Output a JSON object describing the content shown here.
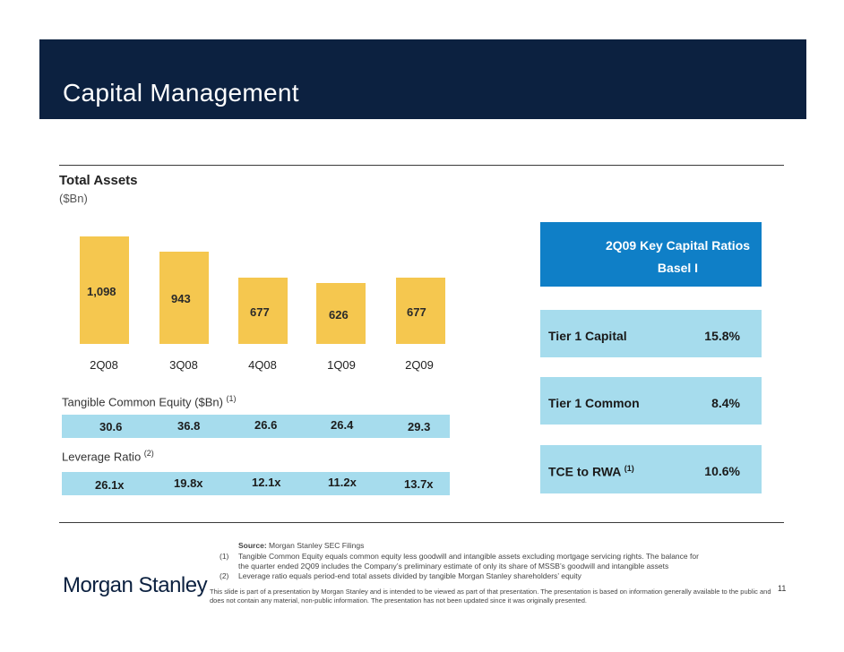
{
  "header": {
    "title": "Capital Management"
  },
  "total_assets": {
    "title": "Total Assets",
    "unit": "($Bn)",
    "chart_data": {
      "type": "bar",
      "categories": [
        "2Q08",
        "3Q08",
        "4Q08",
        "1Q09",
        "2Q09"
      ],
      "values": [
        1098,
        943,
        677,
        626,
        677
      ],
      "value_labels": [
        "1,098",
        "943",
        "677",
        "626",
        "677"
      ]
    }
  },
  "tce": {
    "label": "Tangible Common Equity ($Bn)",
    "note": "(1)",
    "values": [
      "30.6",
      "36.8",
      "26.6",
      "26.4",
      "29.3"
    ]
  },
  "leverage": {
    "label": "Leverage Ratio",
    "note": "(2)",
    "values": [
      "26.1x",
      "19.8x",
      "12.1x",
      "11.2x",
      "13.7x"
    ]
  },
  "ratios": {
    "header_line1": "2Q09 Key Capital Ratios",
    "header_line2": "Basel I",
    "items": [
      {
        "label": "Tier 1 Capital",
        "note": "",
        "value": "15.8%"
      },
      {
        "label": "Tier 1 Common",
        "note": "",
        "value": "8.4%"
      },
      {
        "label": "TCE to RWA",
        "note": "(1)",
        "value": "10.6%"
      }
    ]
  },
  "footnotes": {
    "source_label": "Source:",
    "source_text": "Morgan Stanley SEC Filings",
    "note1_marker": "(1)",
    "note1_line1": "Tangible Common Equity equals common equity less goodwill and intangible assets excluding mortgage servicing rights. The balance for",
    "note1_line2": "the quarter ended 2Q09 includes the Company’s preliminary estimate of only its share of MSSB’s goodwill and intangible assets",
    "note2_marker": "(2)",
    "note2_line1": "Leverage ratio equals period-end total assets divided by tangible Morgan Stanley shareholders’ equity",
    "disclaimer_line1": "This slide is part of a presentation by Morgan Stanley and is intended to be viewed as part of that presentation. The presentation is based on information generally available to the public and",
    "disclaimer_line2": "does not contain any material, non-public information. The presentation has not been updated since it was originally presented."
  },
  "footer": {
    "logo": "Morgan Stanley",
    "page_number": "11"
  }
}
